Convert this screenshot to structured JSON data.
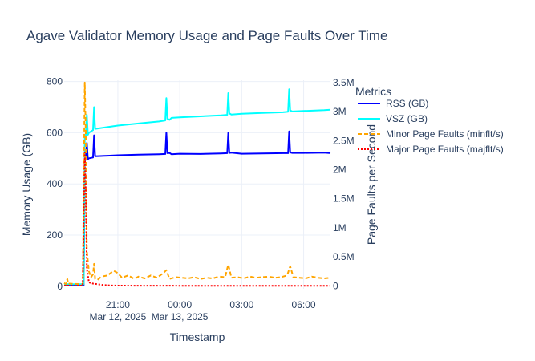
{
  "chart_data": {
    "type": "line",
    "title": "Agave Validator Memory Usage and Page Faults Over Time",
    "xlabel": "Timestamp",
    "ylabel": "Memory Usage (GB)",
    "y2label": "Page Faults per Second",
    "legend_title": "Metrics",
    "legend_position": "right",
    "grid": true,
    "xlim_hours": [
      18.4,
      31.3
    ],
    "ylim": [
      -10,
      805
    ],
    "y2lim": [
      -50000,
      3540000
    ],
    "x_ticks": [
      {
        "h": 21,
        "label": "21:00",
        "sub": "Mar 12, 2025"
      },
      {
        "h": 24,
        "label": "00:00",
        "sub": "Mar 13, 2025"
      },
      {
        "h": 27,
        "label": "03:00",
        "sub": ""
      },
      {
        "h": 30,
        "label": "06:00",
        "sub": ""
      }
    ],
    "y_ticks": [
      0,
      200,
      400,
      600,
      800
    ],
    "y2_ticks": [
      {
        "v": 0,
        "label": "0"
      },
      {
        "v": 500000,
        "label": "0.5M"
      },
      {
        "v": 1000000,
        "label": "1M"
      },
      {
        "v": 1500000,
        "label": "1.5M"
      },
      {
        "v": 2000000,
        "label": "2M"
      },
      {
        "v": 2500000,
        "label": "2.5M"
      },
      {
        "v": 3000000,
        "label": "3M"
      },
      {
        "v": 3500000,
        "label": "3.5M"
      }
    ],
    "series": [
      {
        "name": "RSS (GB)",
        "axis": "y",
        "color": "#0000ff",
        "dash": "solid",
        "x": [
          18.4,
          19.35,
          19.4,
          19.45,
          19.5,
          19.55,
          19.6,
          19.8,
          19.85,
          19.9,
          20.5,
          21,
          22,
          23,
          23.3,
          23.35,
          23.4,
          23.5,
          23.6,
          24,
          25,
          26,
          26.3,
          26.35,
          26.4,
          26.5,
          27,
          28,
          29,
          29.25,
          29.3,
          29.35,
          29.45,
          30,
          31,
          31.3
        ],
        "y": [
          5,
          5,
          490,
          495,
          560,
          496,
          500,
          503,
          590,
          508,
          510,
          512,
          514,
          516,
          517,
          600,
          520,
          521,
          516,
          518,
          517,
          519,
          520,
          600,
          521,
          522,
          518,
          519,
          520,
          520,
          605,
          523,
          521,
          521,
          522,
          520
        ]
      },
      {
        "name": "VSZ (GB)",
        "axis": "y",
        "color": "#00ffff",
        "dash": "solid",
        "x": [
          18.4,
          19.35,
          19.4,
          19.45,
          19.5,
          19.55,
          19.6,
          19.8,
          19.85,
          19.9,
          20.5,
          21,
          22,
          23,
          23.3,
          23.35,
          23.4,
          23.5,
          23.6,
          24,
          25,
          26,
          26.3,
          26.35,
          26.4,
          26.5,
          27,
          28,
          29,
          29.25,
          29.3,
          29.35,
          29.45,
          30,
          31,
          31.3
        ],
        "y": [
          8,
          8,
          580,
          590,
          670,
          592,
          600,
          610,
          700,
          615,
          622,
          628,
          636,
          644,
          648,
          735,
          655,
          650,
          658,
          660,
          664,
          668,
          670,
          755,
          676,
          671,
          674,
          677,
          680,
          682,
          770,
          687,
          683,
          685,
          688,
          690
        ]
      },
      {
        "name": "Minor Page Faults (minflt/s)",
        "axis": "y2",
        "color": "#ffa500",
        "dash": "dash",
        "x": [
          18.4,
          18.5,
          18.55,
          18.6,
          19.3,
          19.4,
          19.45,
          19.5,
          19.6,
          19.7,
          19.8,
          19.85,
          19.9,
          20.0,
          20.2,
          20.5,
          20.8,
          21.0,
          21.2,
          21.5,
          21.8,
          22.0,
          22.3,
          22.6,
          22.9,
          23.2,
          23.35,
          23.5,
          23.8,
          24.1,
          24.4,
          24.7,
          25.0,
          25.3,
          25.6,
          25.9,
          26.2,
          26.35,
          26.5,
          26.8,
          27.1,
          27.4,
          27.7,
          28.0,
          28.3,
          28.6,
          28.9,
          29.2,
          29.35,
          29.5,
          29.8,
          30.1,
          30.4,
          30.7,
          31.0,
          31.3
        ],
        "y": [
          50000,
          30000,
          120000,
          40000,
          30000,
          3500000,
          2600000,
          600000,
          250000,
          150000,
          200000,
          380000,
          120000,
          100000,
          160000,
          180000,
          260000,
          220000,
          140000,
          180000,
          120000,
          160000,
          130000,
          180000,
          140000,
          220000,
          270000,
          120000,
          150000,
          140000,
          130000,
          150000,
          120000,
          140000,
          130000,
          160000,
          150000,
          370000,
          140000,
          150000,
          130000,
          160000,
          140000,
          150000,
          160000,
          140000,
          150000,
          180000,
          340000,
          150000,
          140000,
          130000,
          160000,
          140000,
          130000,
          140000
        ]
      },
      {
        "name": "Major Page Faults (majflt/s)",
        "axis": "y2",
        "color": "#ff0000",
        "dash": "dot",
        "x": [
          18.4,
          19.3,
          19.4,
          19.45,
          19.5,
          19.6,
          19.8,
          20.0,
          20.3,
          20.6,
          21.0,
          22.0,
          23.0,
          24.0,
          25.0,
          26.0,
          27.0,
          28.0,
          29.0,
          30.0,
          31.3
        ],
        "y": [
          5000,
          5000,
          2300000,
          1600000,
          300000,
          60000,
          40000,
          30000,
          15000,
          8000,
          5000,
          4000,
          4000,
          3000,
          3000,
          3000,
          3000,
          3000,
          3000,
          3000,
          3000
        ]
      }
    ]
  }
}
